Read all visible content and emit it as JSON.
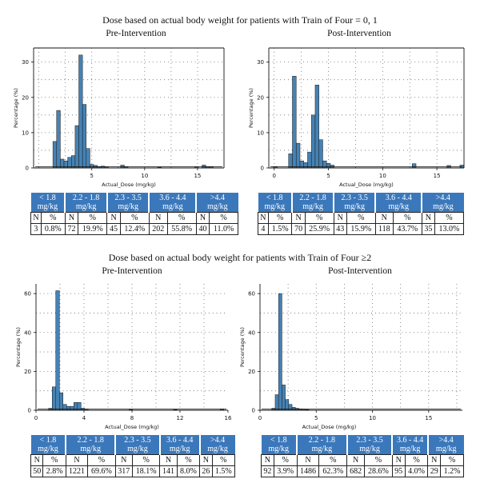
{
  "section1": {
    "title": "Dose based on actual body weight for patients with Train of Four = 0, 1"
  },
  "section2": {
    "title": "Dose based on actual body weight for patients with Train of Four ≥2"
  },
  "colors": {
    "bar": "#4682b4",
    "bar_edge": "#1a1a1a",
    "header": "#3b78bb"
  },
  "table_headers": [
    [
      "< 1.8",
      "mg/kg"
    ],
    [
      "2.2 - 1.8",
      "mg/kg"
    ],
    [
      "2.3 - 3.5",
      "mg/kg"
    ],
    [
      "3.6 - 4.4",
      "mg/kg"
    ],
    [
      ">4.4",
      "mg/kg"
    ]
  ],
  "table_subheaders": [
    "N",
    "%"
  ],
  "tables": [
    {
      "rows": [
        [
          "3",
          "0.8%"
        ],
        [
          "72",
          "19.9%"
        ],
        [
          "45",
          "12.4%"
        ],
        [
          "202",
          "55.8%"
        ],
        [
          "40",
          "11.0%"
        ]
      ]
    },
    {
      "rows": [
        [
          "4",
          "1.5%"
        ],
        [
          "70",
          "25.9%"
        ],
        [
          "43",
          "15.9%"
        ],
        [
          "118",
          "43.7%"
        ],
        [
          "35",
          "13.0%"
        ]
      ]
    },
    {
      "rows": [
        [
          "50",
          "2.8%"
        ],
        [
          "1221",
          "69.6%"
        ],
        [
          "317",
          "18.1%"
        ],
        [
          "141",
          "8.0%"
        ],
        [
          "26",
          "1.5%"
        ]
      ]
    },
    {
      "rows": [
        [
          "92",
          "3.9%"
        ],
        [
          "1486",
          "62.3%"
        ],
        [
          "682",
          "28.6%"
        ],
        [
          "95",
          "4.0%"
        ],
        [
          "29",
          "1.2%"
        ]
      ]
    }
  ],
  "chart_data": [
    {
      "type": "bar",
      "title": "Pre-Intervention",
      "xlabel": "Actual_Dose (mg/kg)",
      "ylabel": "Percentage (%)",
      "xlim": [
        -0.5,
        17.5
      ],
      "ylim": [
        0,
        34
      ],
      "xticks": [
        5,
        10,
        15
      ],
      "yticks": [
        0,
        10,
        20,
        30
      ],
      "bin_width": 0.35,
      "grid": "dotted",
      "bins": [
        [
          1.5,
          7.5
        ],
        [
          1.85,
          16.3
        ],
        [
          2.2,
          2.5
        ],
        [
          2.55,
          2.0
        ],
        [
          2.9,
          3.0
        ],
        [
          3.25,
          3.5
        ],
        [
          3.6,
          12.0
        ],
        [
          3.95,
          32.0
        ],
        [
          4.3,
          18.0
        ],
        [
          4.65,
          5.5
        ],
        [
          5.0,
          1.0
        ],
        [
          5.35,
          0.7
        ],
        [
          5.7,
          0.4
        ],
        [
          6.05,
          0.5
        ],
        [
          6.4,
          0.3
        ],
        [
          7.9,
          0.8
        ],
        [
          8.25,
          0.4
        ],
        [
          11.4,
          0.2
        ],
        [
          14.9,
          0.3
        ],
        [
          15.6,
          0.8
        ],
        [
          15.95,
          0.4
        ],
        [
          16.3,
          0.4
        ]
      ]
    },
    {
      "type": "bar",
      "title": "Post-Intervention",
      "xlabel": "Actual_Dose (mg/kg)",
      "ylabel": "Percentage (%)",
      "xlim": [
        -0.5,
        17.5
      ],
      "ylim": [
        0,
        34
      ],
      "xticks": [
        0,
        5,
        10,
        15
      ],
      "yticks": [
        0,
        10,
        20,
        30
      ],
      "bin_width": 0.35,
      "grid": "dotted",
      "bins": [
        [
          0.1,
          0.4
        ],
        [
          1.5,
          4.0
        ],
        [
          1.85,
          26.0
        ],
        [
          2.2,
          7.0
        ],
        [
          2.55,
          2.0
        ],
        [
          2.9,
          1.5
        ],
        [
          3.25,
          4.5
        ],
        [
          3.6,
          15.0
        ],
        [
          3.95,
          23.5
        ],
        [
          4.3,
          8.0
        ],
        [
          4.65,
          2.0
        ],
        [
          5.0,
          1.3
        ],
        [
          5.35,
          0.8
        ],
        [
          12.9,
          1.2
        ],
        [
          16.1,
          0.7
        ],
        [
          17.3,
          0.8
        ]
      ]
    },
    {
      "type": "bar",
      "title": "Pre-Intervention",
      "xlabel": "Actual_Dose (mg/kg)",
      "ylabel": "Percentage (%)",
      "xlim": [
        0,
        16
      ],
      "ylim": [
        0,
        65
      ],
      "xticks": [
        0,
        4,
        8,
        12,
        16
      ],
      "yticks": [
        0,
        20,
        40,
        60
      ],
      "bin_width": 0.3,
      "grid": "dotted",
      "bins": [
        [
          1.2,
          1.0
        ],
        [
          1.5,
          12.0
        ],
        [
          1.8,
          61.5
        ],
        [
          2.1,
          9.0
        ],
        [
          2.4,
          3.0
        ],
        [
          2.7,
          2.0
        ],
        [
          3.0,
          2.0
        ],
        [
          3.3,
          4.0
        ],
        [
          3.6,
          4.0
        ],
        [
          3.9,
          1.0
        ],
        [
          4.2,
          0.5
        ],
        [
          7.9,
          0.4
        ],
        [
          11.6,
          0.3
        ],
        [
          15.5,
          0.6
        ]
      ]
    },
    {
      "type": "bar",
      "title": "Post-Intervention",
      "xlabel": "Actual_Dose (mg/kg)",
      "ylabel": "Percentage (%)",
      "xlim": [
        0,
        18
      ],
      "ylim": [
        0,
        65
      ],
      "xticks": [
        0,
        5,
        10,
        15
      ],
      "yticks": [
        0,
        20,
        40,
        60
      ],
      "bin_width": 0.3,
      "grid": "dotted",
      "bins": [
        [
          1.2,
          1.0
        ],
        [
          1.5,
          8.0
        ],
        [
          1.8,
          60.0
        ],
        [
          2.1,
          13.0
        ],
        [
          2.4,
          5.5
        ],
        [
          2.7,
          3.0
        ],
        [
          3.0,
          1.5
        ],
        [
          3.3,
          1.0
        ],
        [
          3.6,
          0.7
        ],
        [
          3.9,
          0.5
        ],
        [
          4.2,
          0.3
        ]
      ]
    }
  ]
}
